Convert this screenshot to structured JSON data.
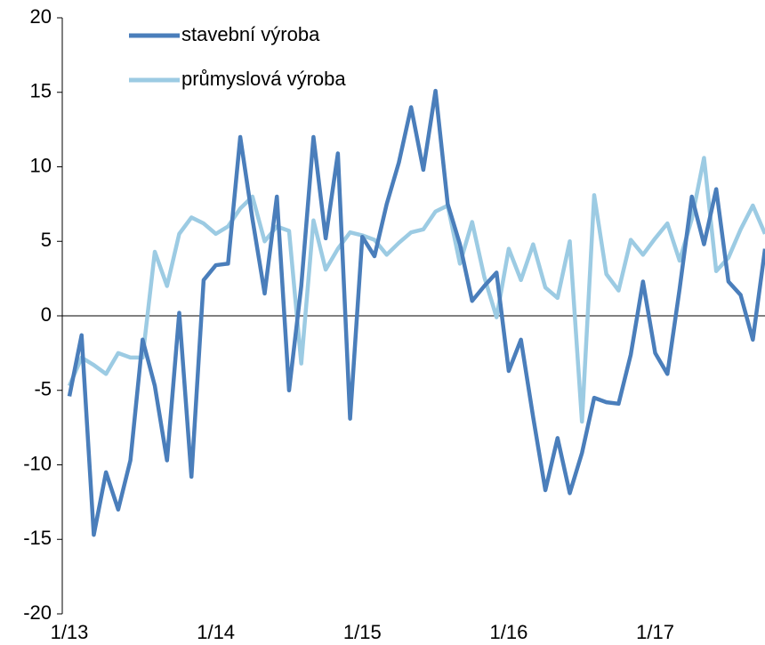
{
  "chart_data": {
    "type": "line",
    "categories": [
      "1/13",
      null,
      null,
      null,
      null,
      null,
      null,
      null,
      null,
      null,
      null,
      null,
      "1/14",
      null,
      null,
      null,
      null,
      null,
      null,
      null,
      null,
      null,
      null,
      null,
      "1/15",
      null,
      null,
      null,
      null,
      null,
      null,
      null,
      null,
      null,
      null,
      null,
      "1/16",
      null,
      null,
      null,
      null,
      null,
      null,
      null,
      null,
      null,
      null,
      null,
      "1/17",
      null,
      null,
      null,
      null,
      null,
      null,
      null,
      null,
      null
    ],
    "series": [
      {
        "name": "stavební výroba",
        "color": "#4a7ebb",
        "values": [
          -5.4,
          -1.3,
          -14.7,
          -10.5,
          -13,
          -9.7,
          -1.6,
          -4.7,
          -9.7,
          0.2,
          -10.8,
          2.4,
          3.4,
          3.5,
          12,
          6.5,
          1.5,
          8,
          -5,
          2,
          12,
          5.2,
          10.9,
          -6.9,
          5.3,
          4.0,
          7.5,
          10.3,
          14,
          9.8,
          15.1,
          7.5,
          4.8,
          1,
          2,
          2.9,
          -3.7,
          -1.6,
          -6.8,
          -11.7,
          -8.2,
          -11.9,
          -9.2,
          -5.5,
          -5.8,
          -5.9,
          -2.6,
          2.3,
          -2.5,
          -3.9,
          1.8,
          8,
          4.8,
          8.5,
          2.3,
          1.4,
          -1.6,
          4.5
        ]
      },
      {
        "name": "průmyslová výroba",
        "color": "#9ccbe3",
        "values": [
          -4.7,
          -2.8,
          -3.3,
          -3.9,
          -2.5,
          -2.8,
          -2.8,
          4.3,
          2,
          5.5,
          6.6,
          6.2,
          5.5,
          6,
          7.2,
          8,
          5,
          6,
          5.7,
          -3.2,
          6.4,
          3.1,
          4.5,
          5.6,
          5.4,
          5.1,
          4.1,
          4.9,
          5.6,
          5.8,
          7,
          7.4,
          3.5,
          6.3,
          2.6,
          -0.1,
          4.5,
          2.4,
          4.8,
          1.9,
          1.2,
          5,
          -7.1,
          8.1,
          2.8,
          1.7,
          5.1,
          4.1,
          5.2,
          6.2,
          3.7,
          6.5,
          10.6,
          3,
          3.9,
          5.8,
          7.4,
          5.5
        ]
      }
    ],
    "ylim": [
      -20,
      20
    ],
    "yticks": [
      -20,
      -15,
      -10,
      -5,
      0,
      5,
      10,
      15,
      20
    ],
    "legend": "upper left"
  }
}
